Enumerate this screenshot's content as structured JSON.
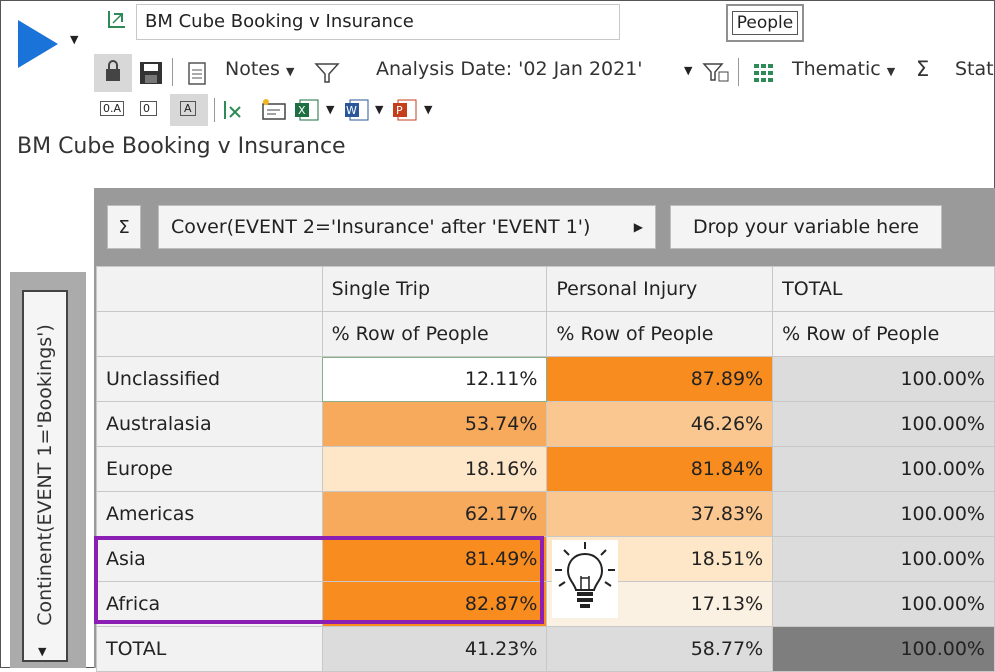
{
  "window": {
    "title": "BM Cube Booking v Insurance"
  },
  "header": {
    "people_button": "People"
  },
  "toolbar": {
    "notes_label": "Notes",
    "analysis_date_label": "Analysis Date: '02 Jan 2021'",
    "thematic_label": "Thematic",
    "stat_label": "Stat",
    "toggle_labels": [
      "0.A",
      "0",
      "A"
    ]
  },
  "page": {
    "title": "BM Cube Booking v Insurance"
  },
  "grid": {
    "sigma_label": "Σ",
    "column_variable": "Cover(EVENT 2='Insurance' after 'EVENT 1')",
    "drop_placeholder": "Drop your variable here",
    "row_variable": "Continent(EVENT 1='Bookings')",
    "columns": [
      "Single Trip",
      "Personal Injury",
      "TOTAL"
    ],
    "measure": "% Row of People",
    "rows": [
      {
        "label": "Unclassified",
        "values": [
          "12.11%",
          "87.89%",
          "100.00%"
        ]
      },
      {
        "label": "Australasia",
        "values": [
          "53.74%",
          "46.26%",
          "100.00%"
        ]
      },
      {
        "label": "Europe",
        "values": [
          "18.16%",
          "81.84%",
          "100.00%"
        ]
      },
      {
        "label": "Americas",
        "values": [
          "62.17%",
          "37.83%",
          "100.00%"
        ]
      },
      {
        "label": "Asia",
        "values": [
          "81.49%",
          "18.51%",
          "100.00%"
        ]
      },
      {
        "label": "Africa",
        "values": [
          "82.87%",
          "17.13%",
          "100.00%"
        ]
      },
      {
        "label": "TOTAL",
        "values": [
          "41.23%",
          "58.77%",
          "100.00%"
        ]
      }
    ]
  },
  "colors": {
    "run_button": "#1a73d9",
    "highlight_border": "#8b1fb3",
    "heat_max": "#f98c1f"
  },
  "icons": [
    "play-icon",
    "notes-icon",
    "filter-icon",
    "grid-icon",
    "sigma-icon",
    "excel-icon",
    "word-icon",
    "powerpoint-icon",
    "lightbulb-icon"
  ]
}
